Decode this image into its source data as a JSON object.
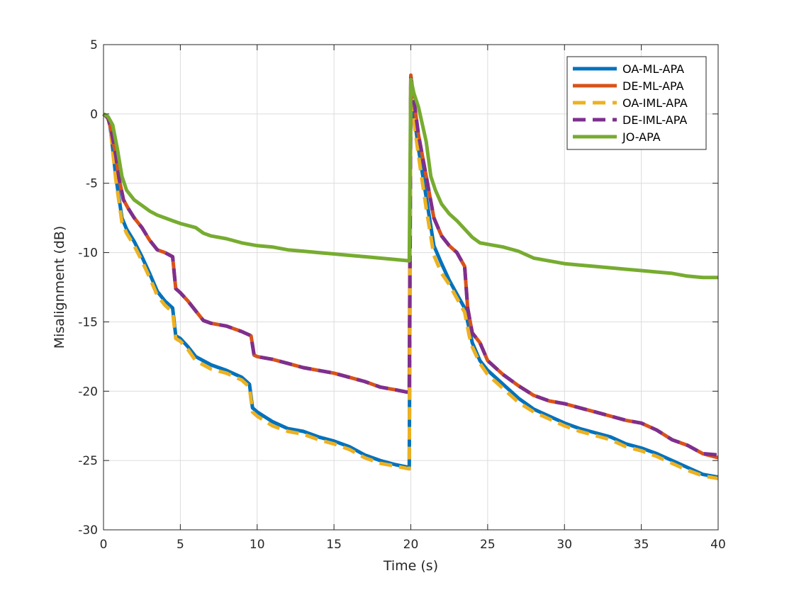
{
  "chart_data": {
    "type": "line",
    "title": "",
    "xlabel": "Time (s)",
    "ylabel": "Misalignment (dB)",
    "xlim": [
      0,
      40
    ],
    "ylim": [
      -30,
      5
    ],
    "xticks": [
      0,
      5,
      10,
      15,
      20,
      25,
      30,
      35,
      40
    ],
    "yticks": [
      -30,
      -25,
      -20,
      -15,
      -10,
      -5,
      0,
      5
    ],
    "grid": true,
    "legend_position": "top-right",
    "series": [
      {
        "name": "OA-ML-APA",
        "color": "#0072BD",
        "style": "solid",
        "points": [
          [
            0,
            0
          ],
          [
            0.2,
            -0.2
          ],
          [
            0.4,
            -0.6
          ],
          [
            0.6,
            -2.5
          ],
          [
            0.8,
            -4.5
          ],
          [
            1.0,
            -6.0
          ],
          [
            1.2,
            -7.5
          ],
          [
            1.5,
            -8.3
          ],
          [
            2.0,
            -9.2
          ],
          [
            2.5,
            -10.3
          ],
          [
            3.0,
            -11.5
          ],
          [
            3.5,
            -12.8
          ],
          [
            4.0,
            -13.5
          ],
          [
            4.5,
            -14.0
          ],
          [
            4.7,
            -16.0
          ],
          [
            5.0,
            -16.2
          ],
          [
            5.5,
            -16.8
          ],
          [
            6.0,
            -17.5
          ],
          [
            7.0,
            -18.1
          ],
          [
            8.0,
            -18.5
          ],
          [
            9.0,
            -19.0
          ],
          [
            9.5,
            -19.5
          ],
          [
            9.7,
            -21.2
          ],
          [
            10.0,
            -21.5
          ],
          [
            11.0,
            -22.2
          ],
          [
            12.0,
            -22.7
          ],
          [
            13.0,
            -22.9
          ],
          [
            14.0,
            -23.3
          ],
          [
            15.0,
            -23.6
          ],
          [
            16.0,
            -24.0
          ],
          [
            17.0,
            -24.6
          ],
          [
            18.0,
            -25.0
          ],
          [
            19.0,
            -25.3
          ],
          [
            19.9,
            -25.5
          ],
          [
            20.0,
            2.5
          ],
          [
            20.2,
            0.0
          ],
          [
            20.5,
            -2.5
          ],
          [
            21.0,
            -6.0
          ],
          [
            21.5,
            -9.5
          ],
          [
            22.0,
            -10.8
          ],
          [
            22.5,
            -12.0
          ],
          [
            23.0,
            -13.0
          ],
          [
            23.5,
            -14.0
          ],
          [
            23.8,
            -15.5
          ],
          [
            24.0,
            -16.5
          ],
          [
            24.5,
            -17.8
          ],
          [
            25.0,
            -18.5
          ],
          [
            26.0,
            -19.5
          ],
          [
            27.0,
            -20.5
          ],
          [
            28.0,
            -21.3
          ],
          [
            29.0,
            -21.8
          ],
          [
            30.0,
            -22.3
          ],
          [
            31.0,
            -22.7
          ],
          [
            32.0,
            -23.0
          ],
          [
            33.0,
            -23.3
          ],
          [
            34.0,
            -23.8
          ],
          [
            35.0,
            -24.1
          ],
          [
            36.0,
            -24.5
          ],
          [
            37.0,
            -25.0
          ],
          [
            38.0,
            -25.5
          ],
          [
            39.0,
            -26.0
          ],
          [
            40.0,
            -26.2
          ]
        ]
      },
      {
        "name": "DE-ML-APA",
        "color": "#D95319",
        "style": "solid",
        "points": [
          [
            0,
            0
          ],
          [
            0.3,
            -0.3
          ],
          [
            0.5,
            -1.2
          ],
          [
            0.8,
            -3.0
          ],
          [
            1.0,
            -4.6
          ],
          [
            1.3,
            -6.2
          ],
          [
            1.6,
            -6.8
          ],
          [
            2.0,
            -7.5
          ],
          [
            2.5,
            -8.2
          ],
          [
            3.0,
            -9.1
          ],
          [
            3.5,
            -9.8
          ],
          [
            4.0,
            -10.0
          ],
          [
            4.5,
            -10.3
          ],
          [
            4.7,
            -12.6
          ],
          [
            5.0,
            -12.9
          ],
          [
            5.5,
            -13.5
          ],
          [
            6.0,
            -14.2
          ],
          [
            6.5,
            -14.9
          ],
          [
            7.0,
            -15.1
          ],
          [
            8.0,
            -15.3
          ],
          [
            9.0,
            -15.7
          ],
          [
            9.6,
            -16.0
          ],
          [
            9.8,
            -17.4
          ],
          [
            10.0,
            -17.5
          ],
          [
            11.0,
            -17.7
          ],
          [
            12.0,
            -18.0
          ],
          [
            13.0,
            -18.3
          ],
          [
            14.0,
            -18.5
          ],
          [
            15.0,
            -18.7
          ],
          [
            16.0,
            -19.0
          ],
          [
            17.0,
            -19.3
          ],
          [
            18.0,
            -19.7
          ],
          [
            19.0,
            -19.9
          ],
          [
            19.9,
            -20.1
          ],
          [
            20.0,
            2.8
          ],
          [
            20.2,
            1.0
          ],
          [
            20.5,
            -1.5
          ],
          [
            21.0,
            -4.5
          ],
          [
            21.5,
            -7.5
          ],
          [
            22.0,
            -8.8
          ],
          [
            22.5,
            -9.5
          ],
          [
            23.0,
            -10.0
          ],
          [
            23.5,
            -11.0
          ],
          [
            23.7,
            -14.0
          ],
          [
            24.0,
            -15.8
          ],
          [
            24.5,
            -16.5
          ],
          [
            25.0,
            -17.8
          ],
          [
            26.0,
            -18.8
          ],
          [
            27.0,
            -19.6
          ],
          [
            28.0,
            -20.3
          ],
          [
            29.0,
            -20.7
          ],
          [
            30.0,
            -20.9
          ],
          [
            31.0,
            -21.2
          ],
          [
            32.0,
            -21.5
          ],
          [
            33.0,
            -21.8
          ],
          [
            34.0,
            -22.1
          ],
          [
            35.0,
            -22.3
          ],
          [
            36.0,
            -22.8
          ],
          [
            37.0,
            -23.5
          ],
          [
            38.0,
            -23.9
          ],
          [
            39.0,
            -24.5
          ],
          [
            40.0,
            -24.8
          ]
        ]
      },
      {
        "name": "OA-IML-APA",
        "color": "#EDB120",
        "style": "dashed",
        "points": [
          [
            0,
            0
          ],
          [
            0.2,
            -0.2
          ],
          [
            0.4,
            -0.6
          ],
          [
            0.6,
            -2.7
          ],
          [
            0.8,
            -4.7
          ],
          [
            1.0,
            -6.3
          ],
          [
            1.2,
            -7.8
          ],
          [
            1.5,
            -8.6
          ],
          [
            2.0,
            -9.5
          ],
          [
            2.5,
            -10.6
          ],
          [
            3.0,
            -11.8
          ],
          [
            3.5,
            -13.1
          ],
          [
            4.0,
            -13.8
          ],
          [
            4.5,
            -14.3
          ],
          [
            4.7,
            -16.2
          ],
          [
            5.0,
            -16.4
          ],
          [
            5.5,
            -17.0
          ],
          [
            6.0,
            -17.8
          ],
          [
            7.0,
            -18.4
          ],
          [
            8.0,
            -18.7
          ],
          [
            9.0,
            -19.2
          ],
          [
            9.5,
            -19.7
          ],
          [
            9.7,
            -21.5
          ],
          [
            10.0,
            -21.8
          ],
          [
            11.0,
            -22.5
          ],
          [
            12.0,
            -22.9
          ],
          [
            13.0,
            -23.1
          ],
          [
            14.0,
            -23.5
          ],
          [
            15.0,
            -23.8
          ],
          [
            16.0,
            -24.2
          ],
          [
            17.0,
            -24.8
          ],
          [
            18.0,
            -25.2
          ],
          [
            19.0,
            -25.4
          ],
          [
            19.9,
            -25.6
          ],
          [
            20.0,
            2.4
          ],
          [
            20.2,
            -0.5
          ],
          [
            20.5,
            -3.0
          ],
          [
            21.0,
            -6.8
          ],
          [
            21.5,
            -10.2
          ],
          [
            22.0,
            -11.5
          ],
          [
            22.5,
            -12.3
          ],
          [
            23.0,
            -13.3
          ],
          [
            23.5,
            -14.3
          ],
          [
            23.8,
            -16.0
          ],
          [
            24.0,
            -16.8
          ],
          [
            24.5,
            -18.0
          ],
          [
            25.0,
            -18.8
          ],
          [
            26.0,
            -19.8
          ],
          [
            27.0,
            -20.8
          ],
          [
            28.0,
            -21.5
          ],
          [
            29.0,
            -22.0
          ],
          [
            30.0,
            -22.5
          ],
          [
            31.0,
            -22.9
          ],
          [
            32.0,
            -23.2
          ],
          [
            33.0,
            -23.5
          ],
          [
            34.0,
            -24.0
          ],
          [
            35.0,
            -24.3
          ],
          [
            36.0,
            -24.7
          ],
          [
            37.0,
            -25.2
          ],
          [
            38.0,
            -25.7
          ],
          [
            39.0,
            -26.1
          ],
          [
            40.0,
            -26.3
          ]
        ]
      },
      {
        "name": "DE-IML-APA",
        "color": "#7E2F8E",
        "style": "dashed",
        "points": [
          [
            0,
            0
          ],
          [
            0.3,
            -0.3
          ],
          [
            0.5,
            -1.2
          ],
          [
            0.8,
            -3.0
          ],
          [
            1.0,
            -4.6
          ],
          [
            1.3,
            -6.2
          ],
          [
            1.6,
            -6.8
          ],
          [
            2.0,
            -7.5
          ],
          [
            2.5,
            -8.2
          ],
          [
            3.0,
            -9.1
          ],
          [
            3.5,
            -9.8
          ],
          [
            4.0,
            -10.0
          ],
          [
            4.5,
            -10.3
          ],
          [
            4.7,
            -12.6
          ],
          [
            5.0,
            -12.9
          ],
          [
            5.5,
            -13.5
          ],
          [
            6.0,
            -14.2
          ],
          [
            6.5,
            -14.9
          ],
          [
            7.0,
            -15.1
          ],
          [
            8.0,
            -15.3
          ],
          [
            9.0,
            -15.7
          ],
          [
            9.6,
            -16.0
          ],
          [
            9.8,
            -17.4
          ],
          [
            10.0,
            -17.5
          ],
          [
            11.0,
            -17.7
          ],
          [
            12.0,
            -18.0
          ],
          [
            13.0,
            -18.3
          ],
          [
            14.0,
            -18.5
          ],
          [
            15.0,
            -18.7
          ],
          [
            16.0,
            -19.0
          ],
          [
            17.0,
            -19.3
          ],
          [
            18.0,
            -19.7
          ],
          [
            19.0,
            -19.9
          ],
          [
            19.9,
            -20.1
          ],
          [
            20.0,
            2.8
          ],
          [
            20.2,
            1.0
          ],
          [
            20.5,
            -1.5
          ],
          [
            21.0,
            -4.5
          ],
          [
            21.5,
            -7.5
          ],
          [
            22.0,
            -8.8
          ],
          [
            22.5,
            -9.5
          ],
          [
            23.0,
            -10.0
          ],
          [
            23.5,
            -11.0
          ],
          [
            23.7,
            -14.0
          ],
          [
            24.0,
            -15.8
          ],
          [
            24.5,
            -16.5
          ],
          [
            25.0,
            -17.8
          ],
          [
            26.0,
            -18.8
          ],
          [
            27.0,
            -19.6
          ],
          [
            28.0,
            -20.3
          ],
          [
            29.0,
            -20.7
          ],
          [
            30.0,
            -20.9
          ],
          [
            31.0,
            -21.2
          ],
          [
            32.0,
            -21.5
          ],
          [
            33.0,
            -21.8
          ],
          [
            34.0,
            -22.1
          ],
          [
            35.0,
            -22.3
          ],
          [
            36.0,
            -22.8
          ],
          [
            37.0,
            -23.5
          ],
          [
            38.0,
            -23.9
          ],
          [
            39.0,
            -24.5
          ],
          [
            40.0,
            -24.6
          ]
        ]
      },
      {
        "name": "JO-APA",
        "color": "#77AC30",
        "style": "solid",
        "points": [
          [
            0,
            0
          ],
          [
            0.3,
            -0.2
          ],
          [
            0.6,
            -0.8
          ],
          [
            0.9,
            -2.5
          ],
          [
            1.2,
            -4.5
          ],
          [
            1.5,
            -5.5
          ],
          [
            2.0,
            -6.2
          ],
          [
            2.5,
            -6.6
          ],
          [
            3.0,
            -7.0
          ],
          [
            3.5,
            -7.3
          ],
          [
            4.0,
            -7.5
          ],
          [
            4.5,
            -7.7
          ],
          [
            5.0,
            -7.9
          ],
          [
            6.0,
            -8.2
          ],
          [
            6.5,
            -8.6
          ],
          [
            7.0,
            -8.8
          ],
          [
            8.0,
            -9.0
          ],
          [
            9.0,
            -9.3
          ],
          [
            10.0,
            -9.5
          ],
          [
            11.0,
            -9.6
          ],
          [
            12.0,
            -9.8
          ],
          [
            13.0,
            -9.9
          ],
          [
            14.0,
            -10.0
          ],
          [
            15.0,
            -10.1
          ],
          [
            16.0,
            -10.2
          ],
          [
            17.0,
            -10.3
          ],
          [
            18.0,
            -10.4
          ],
          [
            19.0,
            -10.5
          ],
          [
            19.9,
            -10.6
          ],
          [
            20.0,
            2.5
          ],
          [
            20.2,
            1.5
          ],
          [
            20.5,
            0.5
          ],
          [
            21.0,
            -2.0
          ],
          [
            21.3,
            -4.5
          ],
          [
            21.6,
            -5.5
          ],
          [
            22.0,
            -6.5
          ],
          [
            22.5,
            -7.2
          ],
          [
            23.0,
            -7.7
          ],
          [
            23.5,
            -8.3
          ],
          [
            24.0,
            -8.9
          ],
          [
            24.5,
            -9.3
          ],
          [
            25.0,
            -9.4
          ],
          [
            26.0,
            -9.6
          ],
          [
            27.0,
            -9.9
          ],
          [
            28.0,
            -10.4
          ],
          [
            29.0,
            -10.6
          ],
          [
            30.0,
            -10.8
          ],
          [
            31.0,
            -10.9
          ],
          [
            32.0,
            -11.0
          ],
          [
            33.0,
            -11.1
          ],
          [
            34.0,
            -11.2
          ],
          [
            35.0,
            -11.3
          ],
          [
            36.0,
            -11.4
          ],
          [
            37.0,
            -11.5
          ],
          [
            38.0,
            -11.7
          ],
          [
            39.0,
            -11.8
          ],
          [
            40.0,
            -11.8
          ]
        ]
      }
    ]
  }
}
